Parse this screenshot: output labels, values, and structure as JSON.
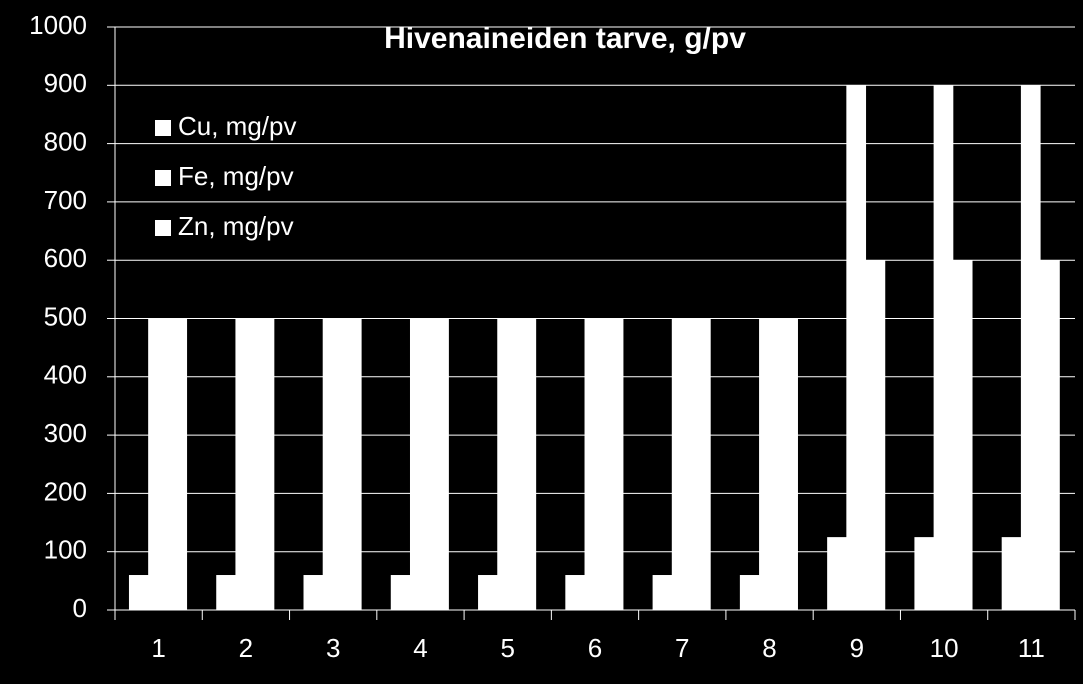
{
  "chart_data": {
    "type": "bar",
    "title": "Hivenaineiden tarve, g/pv",
    "categories": [
      "1",
      "2",
      "3",
      "4",
      "5",
      "6",
      "7",
      "8",
      "9",
      "10",
      "11"
    ],
    "series": [
      {
        "name": "Cu, mg/pv",
        "color": "#ffffff",
        "values": [
          60,
          60,
          60,
          60,
          60,
          60,
          60,
          60,
          125,
          125,
          125
        ]
      },
      {
        "name": "Fe, mg/pv",
        "color": "#ffffff",
        "values": [
          500,
          500,
          500,
          500,
          500,
          500,
          500,
          500,
          900,
          900,
          900
        ]
      },
      {
        "name": "Zn, mg/pv",
        "color": "#ffffff",
        "values": [
          500,
          500,
          500,
          500,
          500,
          500,
          500,
          500,
          600,
          600,
          600
        ]
      }
    ],
    "ylim": [
      0,
      1000
    ],
    "yticks": [
      0,
      100,
      200,
      300,
      400,
      500,
      600,
      700,
      800,
      900,
      1000
    ],
    "grid": true,
    "legend": "top-left"
  }
}
